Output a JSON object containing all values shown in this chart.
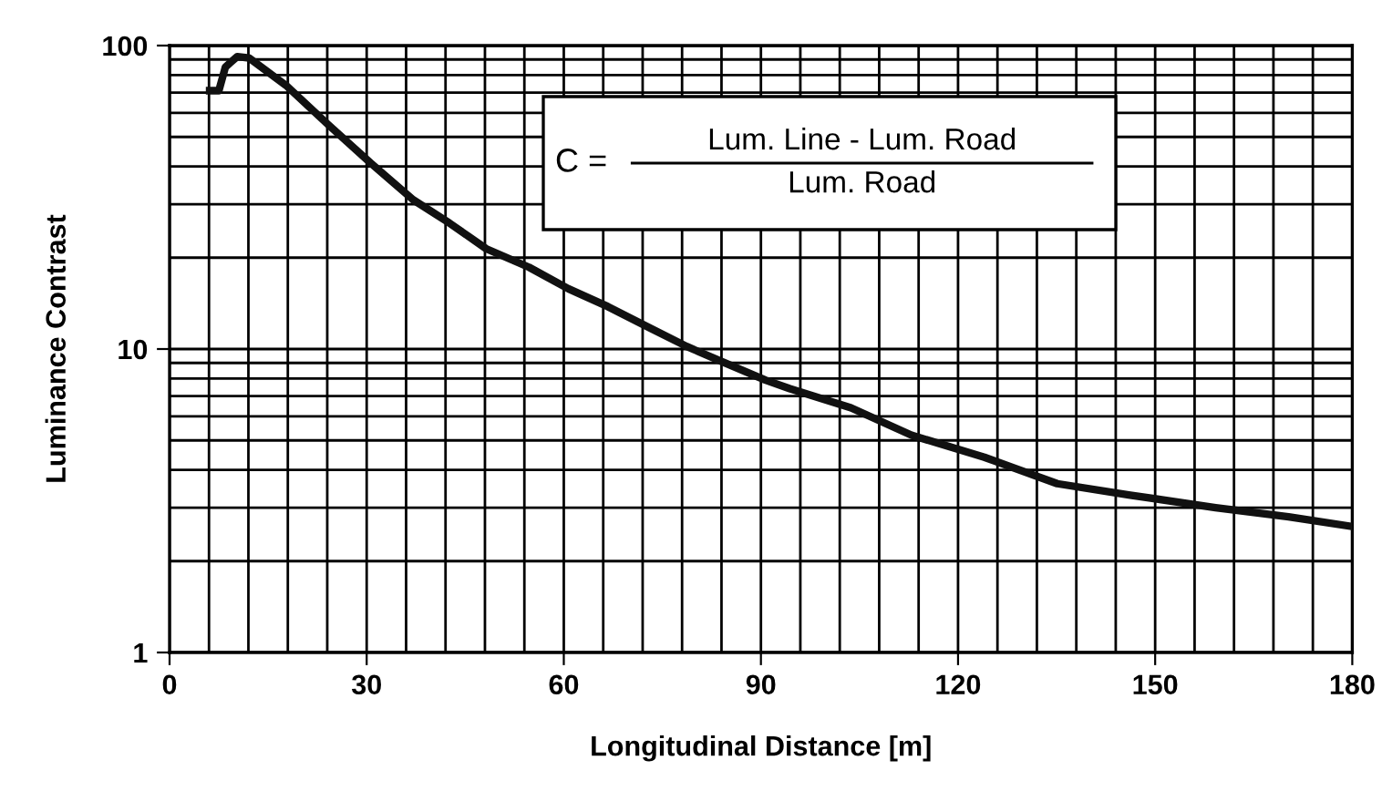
{
  "chart_data": {
    "type": "line",
    "xlabel": "Longitudinal Distance [m]",
    "ylabel": "Luminance Contrast",
    "annotations": [
      "C =",
      "Lum. Line - Lum. Road",
      "Lum. Road"
    ],
    "log": "y",
    "grid": true,
    "marker": "none",
    "line_style": "solid",
    "xlim": [
      0,
      180
    ],
    "xticks": [
      0,
      {
        "value": 6,
        "label": null
      },
      {
        "value": 12,
        "label": null
      },
      {
        "value": 18,
        "label": null
      },
      {
        "value": 24,
        "label": null
      },
      30,
      {
        "value": 36,
        "label": null
      },
      {
        "value": 42,
        "label": null
      },
      {
        "value": 48,
        "label": null
      },
      {
        "value": 54,
        "label": null
      },
      60,
      {
        "value": 66,
        "label": null
      },
      {
        "value": 72,
        "label": null
      },
      {
        "value": 78,
        "label": null
      },
      {
        "value": 84,
        "label": null
      },
      90,
      {
        "value": 96,
        "label": null
      },
      {
        "value": 102,
        "label": null
      },
      {
        "value": 108,
        "label": null
      },
      {
        "value": 114,
        "label": null
      },
      120,
      {
        "value": 126,
        "label": null
      },
      {
        "value": 132,
        "label": null
      },
      {
        "value": 138,
        "label": null
      },
      {
        "value": 144,
        "label": null
      },
      150,
      {
        "value": 156,
        "label": null
      },
      {
        "value": 162,
        "label": null
      },
      {
        "value": 168,
        "label": null
      },
      {
        "value": 174,
        "label": null
      },
      180
    ],
    "ylim": [
      1,
      100
    ],
    "yticks": [
      1,
      {
        "value": 2,
        "label": null
      },
      {
        "value": 3,
        "label": null
      },
      {
        "value": 4,
        "label": null
      },
      {
        "value": 5,
        "label": null
      },
      {
        "value": 6,
        "label": null
      },
      {
        "value": 7,
        "label": null
      },
      {
        "value": 8,
        "label": null
      },
      {
        "value": 9,
        "label": null
      },
      10,
      {
        "value": 20,
        "label": null
      },
      {
        "value": 30,
        "label": null
      },
      {
        "value": 40,
        "label": null
      },
      {
        "value": 50,
        "label": null
      },
      {
        "value": 60,
        "label": null
      },
      {
        "value": 70,
        "label": null
      },
      {
        "value": 80,
        "label": null
      },
      {
        "value": 90,
        "label": null
      },
      100
    ],
    "series": [
      {
        "color": "#111111",
        "x": [
          6.1,
          7.5,
          8.5,
          10.3,
          12.1,
          17.7,
          24.1,
          30.6,
          37.1,
          42.6,
          48.2,
          54.7,
          60.7,
          66.7,
          73.2,
          78.7,
          84,
          90.7,
          94.4,
          103.7,
          112.9,
          124,
          135.1,
          146.2,
          159.2,
          170.3,
          180
        ],
        "values": [
          71,
          71,
          85,
          92,
          91,
          74,
          55,
          41,
          31,
          26,
          21.4,
          18.6,
          15.8,
          13.8,
          11.7,
          10.2,
          9.1,
          7.9,
          7.4,
          6.4,
          5.2,
          4.4,
          3.6,
          3.3,
          3.0,
          2.8,
          2.6
        ]
      }
    ]
  }
}
